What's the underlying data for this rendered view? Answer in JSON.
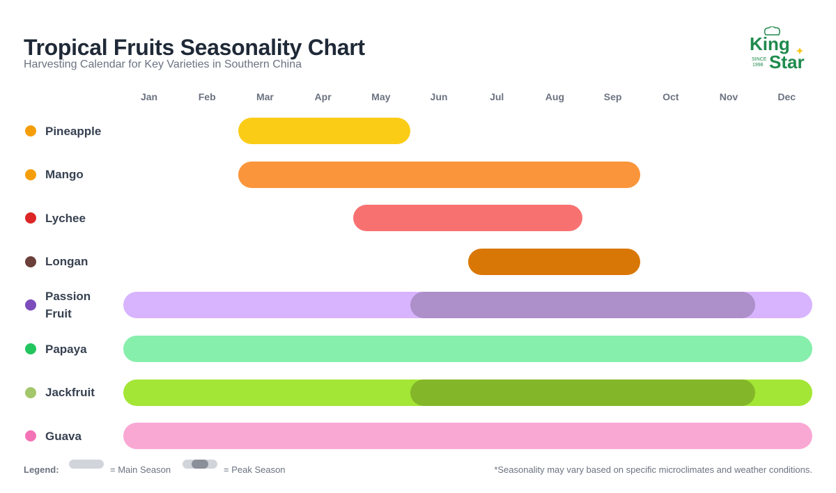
{
  "title": "Tropical Fruits Seasonality Chart",
  "subtitle": "Harvesting Calendar for Key Varieties in Southern China",
  "logo": {
    "text_top": "King",
    "text_bottom": "Star",
    "since": "SINCE",
    "year": "1998",
    "color": "#1f8a4c",
    "star_color": "#f5c518"
  },
  "chart_data": {
    "type": "gantt",
    "categories": [
      "Jan",
      "Feb",
      "Mar",
      "Apr",
      "May",
      "Jun",
      "Jul",
      "Aug",
      "Sep",
      "Oct",
      "Nov",
      "Dec"
    ],
    "series": [
      {
        "name": "Pineapple",
        "icon": "pineapple-icon",
        "icon_color": "#f59e0b",
        "color": "#facc15",
        "main": [
          "Mar",
          "May"
        ],
        "peak": null
      },
      {
        "name": "Mango",
        "icon": "mango-icon",
        "icon_color": "#f59e0b",
        "color": "#fb953b",
        "main": [
          "Mar",
          "Sep"
        ],
        "peak": null
      },
      {
        "name": "Lychee",
        "icon": "strawberry-icon",
        "icon_color": "#dc2626",
        "color": "#f87171",
        "main": [
          "May",
          "Aug"
        ],
        "peak": null
      },
      {
        "name": "Longan",
        "icon": "longan-icon",
        "icon_color": "#6b3f3a",
        "color": "#d97706",
        "main": [
          "Jul",
          "Sep"
        ],
        "peak": null
      },
      {
        "name": "Passion Fruit",
        "icon": "passion-fruit-icon",
        "icon_color": "#7c4dbb",
        "color": "#d8b4fe",
        "peak_color": "#ad8fca",
        "main": [
          "Jan",
          "Dec"
        ],
        "peak": [
          "Jun",
          "Nov"
        ]
      },
      {
        "name": "Papaya",
        "icon": "papaya-icon",
        "icon_color": "#22c55e",
        "color": "#86efac",
        "main": [
          "Jan",
          "Dec"
        ],
        "peak": null
      },
      {
        "name": "Jackfruit",
        "icon": "melon-icon",
        "icon_color": "#a3c76b",
        "color": "#a3e635",
        "peak_color": "#84b62a",
        "main": [
          "Jan",
          "Dec"
        ],
        "peak": [
          "Jun",
          "Nov"
        ]
      },
      {
        "name": "Guava",
        "icon": "blossom-icon",
        "icon_color": "#f472b6",
        "color": "#f9a8d4",
        "main": [
          "Jan",
          "Dec"
        ],
        "peak": null
      }
    ]
  },
  "legend": {
    "label": "Legend:",
    "main": "= Main Season",
    "peak": "= Peak Season",
    "main_color": "#d1d5db",
    "peak_color": "#8b8f99"
  },
  "note": "*Seasonality may vary based on specific microclimates and weather conditions."
}
